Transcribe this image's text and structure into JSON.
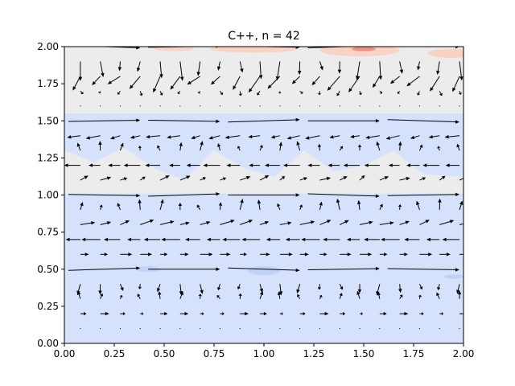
{
  "chart_data": {
    "type": "quiver_contour",
    "title": "C++, n = 42",
    "xlabel": "",
    "ylabel": "",
    "xlim": [
      0.0,
      2.0
    ],
    "ylim": [
      0.0,
      2.0
    ],
    "x_ticks": [
      "0.00",
      "0.25",
      "0.50",
      "0.75",
      "1.00",
      "1.25",
      "1.50",
      "1.75",
      "2.00"
    ],
    "y_ticks": [
      "0.00",
      "0.25",
      "0.50",
      "0.75",
      "1.00",
      "1.25",
      "1.50",
      "1.75",
      "2.00"
    ],
    "grid": false,
    "legend": "none",
    "colormap": "coolwarm",
    "colors": {
      "background_field": "#d6e2fb",
      "neutral_region": "#ececec",
      "warm_region": "#f9d2c5",
      "hot_spot": "#ee9080",
      "cool_spot": "#c1d3f7",
      "arrows": "#000000"
    },
    "contour_regions": [
      {
        "level": "neutral",
        "y_range": [
          1.55,
          2.0
        ]
      },
      {
        "level": "neutral",
        "y_range": [
          1.01,
          1.3
        ]
      },
      {
        "level": "cool",
        "y_range": [
          0.0,
          1.0
        ]
      },
      {
        "level": "cool",
        "y_range": [
          1.3,
          1.53
        ]
      },
      {
        "level": "warm",
        "near": [
          [
            0.5,
            1.98
          ],
          [
            1.0,
            1.98
          ],
          [
            1.5,
            1.98
          ],
          [
            1.95,
            1.95
          ]
        ]
      },
      {
        "level": "cool",
        "near": [
          [
            0.4,
            0.5
          ],
          [
            1.0,
            0.5
          ],
          [
            1.95,
            0.45
          ]
        ]
      }
    ],
    "shear_lines_y": [
      0.5,
      1.0,
      1.5,
      2.0
    ],
    "quiver_bands": [
      {
        "y": 1.9,
        "dx": 0.0,
        "dy": -0.12
      },
      {
        "y": 1.8,
        "dx": -0.05,
        "dy": -0.1
      },
      {
        "y": 1.7,
        "dx": 0.0,
        "dy": -0.03
      },
      {
        "y": 1.6,
        "dx": 0.0,
        "dy": 0.0
      },
      {
        "y": 1.4,
        "dx": -0.06,
        "dy": -0.02
      },
      {
        "y": 1.3,
        "dx": 0.0,
        "dy": 0.06
      },
      {
        "y": 1.2,
        "dx": -0.07,
        "dy": 0.0
      },
      {
        "y": 1.1,
        "dx": 0.04,
        "dy": 0.03
      },
      {
        "y": 0.9,
        "dx": 0.0,
        "dy": 0.07
      },
      {
        "y": 0.8,
        "dx": 0.06,
        "dy": 0.03
      },
      {
        "y": 0.7,
        "dx": -0.08,
        "dy": 0.0
      },
      {
        "y": 0.6,
        "dx": 0.05,
        "dy": 0.0
      },
      {
        "y": 0.4,
        "dx": 0.0,
        "dy": -0.07
      },
      {
        "y": 0.3,
        "dx": 0.0,
        "dy": 0.05
      },
      {
        "y": 0.2,
        "dx": 0.03,
        "dy": 0.0
      },
      {
        "y": 0.1,
        "dx": 0.0,
        "dy": 0.0
      }
    ]
  }
}
